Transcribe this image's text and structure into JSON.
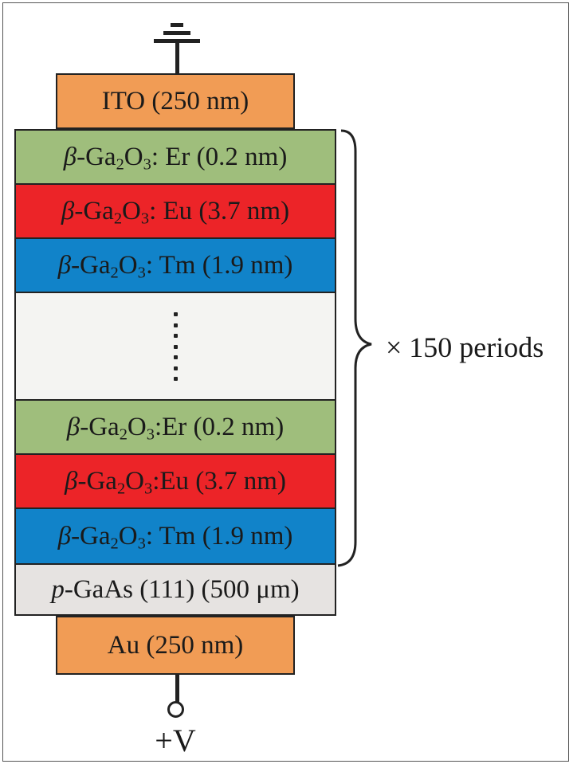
{
  "colors": {
    "electrode": "#f19c55",
    "er_layer": "#9fbe7c",
    "eu_layer": "#ec2428",
    "tm_layer": "#1183c9",
    "ellipsis_block": "#f4f4f2",
    "substrate": "#e6e3e1",
    "outline": "#222222"
  },
  "icons": {
    "ground": "ground-symbol-icon",
    "terminal": "terminal-circle-icon",
    "dots": "vertical-ellipsis-icon"
  },
  "top_electrode": {
    "label": "ITO (250 nm)"
  },
  "layers": [
    {
      "symbol": "β",
      "base": "-Ga",
      "sub1": "2",
      "mid": "O",
      "sub2": "3",
      "suffix": ": Er (0.2 nm)",
      "dopant": "Er"
    },
    {
      "symbol": "β",
      "base": "-Ga",
      "sub1": "2",
      "mid": "O",
      "sub2": "3",
      "suffix": ": Eu (3.7 nm)",
      "dopant": "Eu"
    },
    {
      "symbol": "β",
      "base": "-Ga",
      "sub1": "2",
      "mid": "O",
      "sub2": "3",
      "suffix": ": Tm (1.9 nm)",
      "dopant": "Tm"
    },
    {
      "symbol": "β",
      "base": "-Ga",
      "sub1": "2",
      "mid": "O",
      "sub2": "3",
      "suffix": ":Er (0.2 nm)",
      "dopant": "Er"
    },
    {
      "symbol": "β",
      "base": "-Ga",
      "sub1": "2",
      "mid": "O",
      "sub2": "3",
      "suffix": ":Eu (3.7 nm)",
      "dopant": "Eu"
    },
    {
      "symbol": "β",
      "base": "-Ga",
      "sub1": "2",
      "mid": "O",
      "sub2": "3",
      "suffix": ": Tm (1.9 nm)",
      "dopant": "Tm"
    }
  ],
  "substrate": {
    "prefix": "p",
    "rest": "-GaAs (111) (500 μm)"
  },
  "bottom_electrode": {
    "label": "Au (250 nm)"
  },
  "period_label": "× 150 periods",
  "terminal_label": "+V"
}
